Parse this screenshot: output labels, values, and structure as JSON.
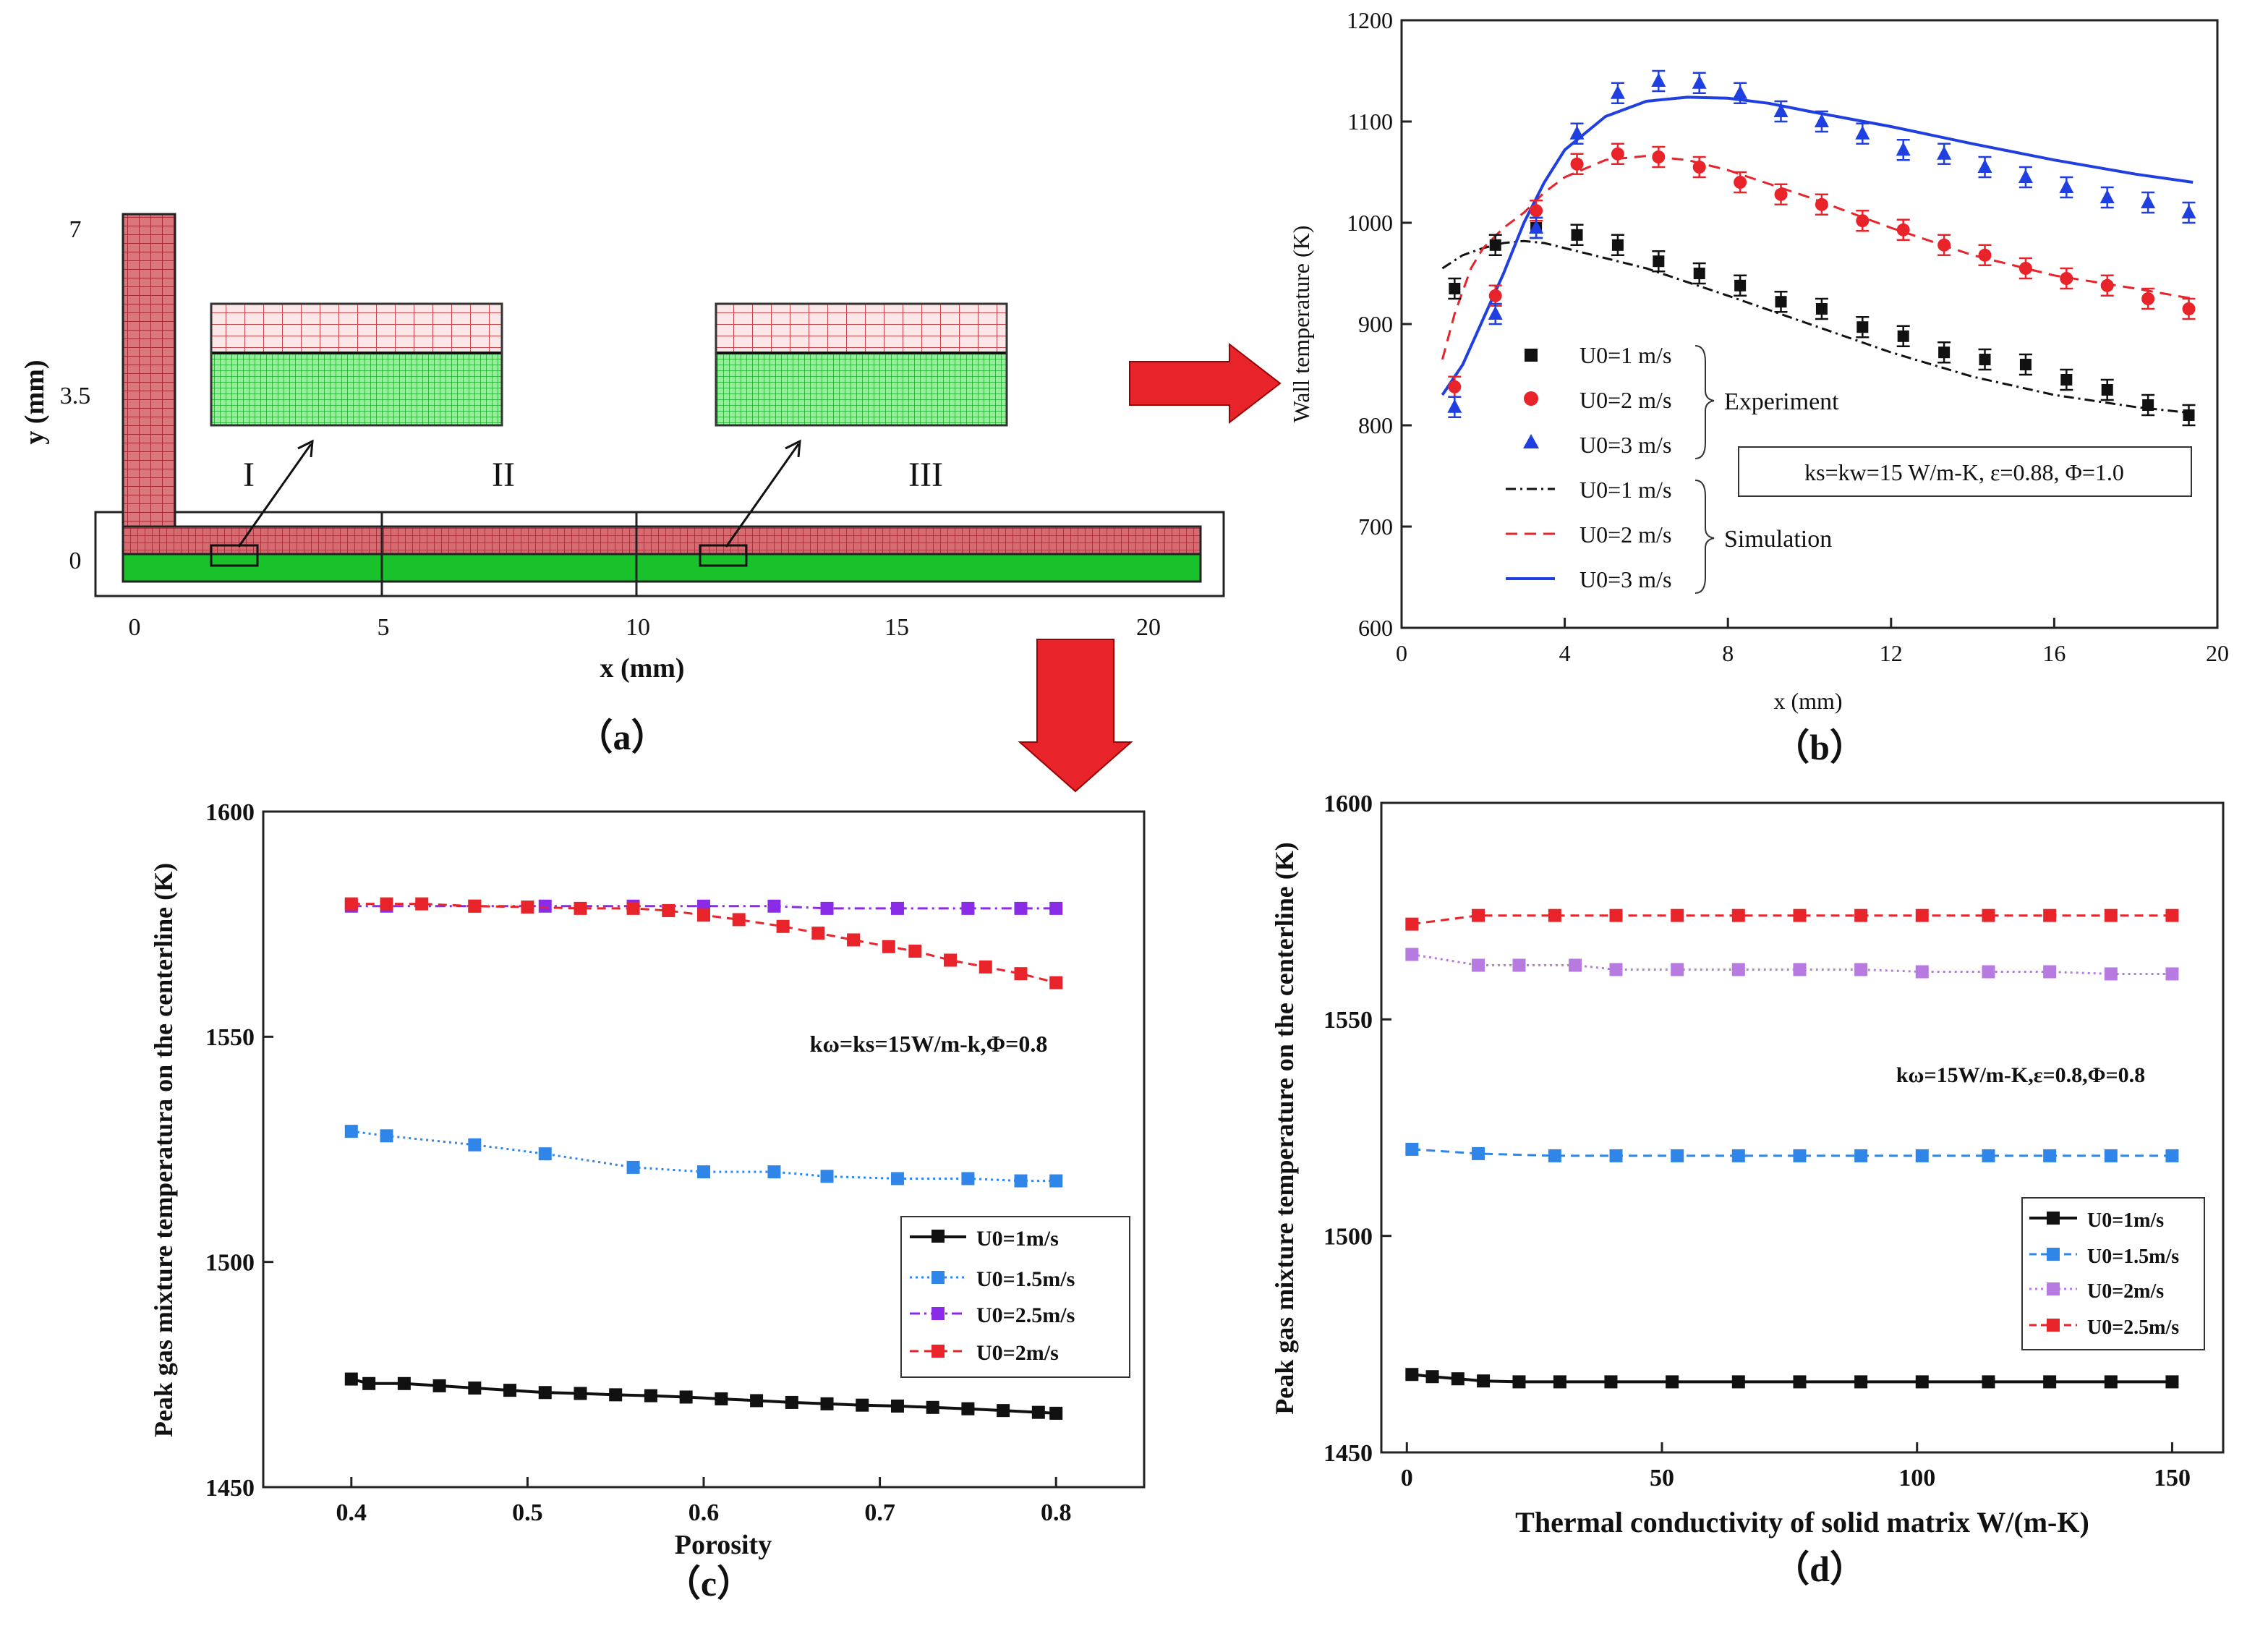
{
  "colors": {
    "red": "#e8242a",
    "blue": "#1f3fe0",
    "black": "#111111",
    "lightblue": "#2f86e8",
    "purple": "#8a2be8",
    "lilac": "#b77ae0",
    "mesh_red": "#c8464e",
    "mesh_green": "#19c22a"
  },
  "panel_a": {
    "label": "（a）",
    "xlabel": "x (mm)",
    "ylabel": "y (mm)",
    "xticks": [
      "0",
      "5",
      "10",
      "15",
      "20"
    ],
    "yticks": [
      "0",
      "3.5",
      "7"
    ],
    "regions": [
      "I",
      "II",
      "III"
    ]
  },
  "chart_data": [
    {
      "id": "b",
      "type": "line",
      "label": "（b）",
      "xlabel": "x (mm)",
      "ylabel": "Wall temperature (K)",
      "xlim": [
        0,
        20
      ],
      "ylim": [
        600,
        1200
      ],
      "xticks": [
        "0",
        "4",
        "8",
        "12",
        "16",
        "20"
      ],
      "yticks": [
        "600",
        "700",
        "800",
        "900",
        "1000",
        "1100",
        "1200"
      ],
      "legend": [
        "U0=1 m/s",
        "U0=2 m/s",
        "U0=3 m/s",
        "U0=1 m/s",
        "U0=2 m/s",
        "U0=3 m/s"
      ],
      "legend_group_experiment": "Experiment",
      "legend_group_simulation": "Simulation",
      "annotation": "ks=kw=15 W/m-K, ε=0.88, Φ=1.0",
      "experiment": [
        {
          "name": "U0=1 m/s",
          "marker": "square",
          "color": "#111111",
          "x": [
            1.3,
            2.3,
            3.3,
            4.3,
            5.3,
            6.3,
            7.3,
            8.3,
            9.3,
            10.3,
            11.3,
            12.3,
            13.3,
            14.3,
            15.3,
            16.3,
            17.3,
            18.3,
            19.3
          ],
          "y": [
            935,
            978,
            995,
            988,
            978,
            962,
            950,
            938,
            922,
            915,
            897,
            888,
            872,
            865,
            860,
            845,
            835,
            820,
            810
          ]
        },
        {
          "name": "U0=2 m/s",
          "marker": "circle",
          "color": "#e8242a",
          "x": [
            1.3,
            2.3,
            3.3,
            4.3,
            5.3,
            6.3,
            7.3,
            8.3,
            9.3,
            10.3,
            11.3,
            12.3,
            13.3,
            14.3,
            15.3,
            16.3,
            17.3,
            18.3,
            19.3
          ],
          "y": [
            838,
            928,
            1012,
            1058,
            1068,
            1065,
            1055,
            1040,
            1028,
            1018,
            1002,
            993,
            978,
            968,
            955,
            945,
            938,
            925,
            915
          ]
        },
        {
          "name": "U0=3 m/s",
          "marker": "triangle",
          "color": "#1f3fe0",
          "x": [
            1.3,
            2.3,
            3.3,
            4.3,
            5.3,
            6.3,
            7.3,
            8.3,
            9.3,
            10.3,
            11.3,
            12.3,
            13.3,
            14.3,
            15.3,
            16.3,
            17.3,
            18.3,
            19.3
          ],
          "y": [
            818,
            910,
            995,
            1088,
            1128,
            1140,
            1138,
            1128,
            1110,
            1100,
            1088,
            1072,
            1068,
            1055,
            1045,
            1035,
            1025,
            1020,
            1010
          ]
        }
      ],
      "simulation": [
        {
          "name": "U0=1 m/s",
          "dash": "dashdot",
          "color": "#111111",
          "x": [
            1,
            1.5,
            2,
            2.5,
            3,
            3.5,
            4,
            5,
            6,
            8,
            10,
            12,
            14,
            16,
            18,
            19.4
          ],
          "y": [
            955,
            968,
            975,
            980,
            982,
            980,
            975,
            965,
            955,
            928,
            900,
            872,
            848,
            830,
            818,
            812
          ]
        },
        {
          "name": "U0=2 m/s",
          "dash": "dash",
          "color": "#e8242a",
          "x": [
            1,
            1.3,
            1.7,
            2,
            2.5,
            3,
            3.5,
            4,
            5,
            6,
            7,
            8,
            10,
            12,
            14,
            16,
            18,
            19.4
          ],
          "y": [
            865,
            910,
            955,
            975,
            995,
            1010,
            1030,
            1045,
            1062,
            1066,
            1062,
            1052,
            1025,
            995,
            968,
            948,
            935,
            925
          ]
        },
        {
          "name": "U0=3 m/s",
          "dash": "solid",
          "color": "#1f3fe0",
          "x": [
            1,
            1.5,
            2,
            2.5,
            3,
            3.5,
            4,
            5,
            6,
            7,
            8,
            9,
            10,
            12,
            14,
            16,
            18,
            19.4
          ],
          "y": [
            830,
            860,
            905,
            950,
            1000,
            1040,
            1072,
            1105,
            1120,
            1124,
            1123,
            1118,
            1110,
            1095,
            1078,
            1062,
            1048,
            1040
          ]
        }
      ]
    },
    {
      "id": "c",
      "type": "line",
      "label": "（c）",
      "xlabel": "Porosity",
      "ylabel": "Peak gas mixture temperatura on the centerline (K)",
      "xlim": [
        0.35,
        0.85
      ],
      "ylim": [
        1450,
        1600
      ],
      "xticks": [
        "0.4",
        "0.5",
        "0.6",
        "0.7",
        "0.8"
      ],
      "yticks": [
        "1450",
        "1500",
        "1550",
        "1600"
      ],
      "annotation": "kω=ks=15W/m-k,Φ=0.8",
      "legend": [
        "U0=1m/s",
        "U0=1.5m/s",
        "U0=2.5m/s",
        "U0=2m/s"
      ],
      "series": [
        {
          "name": "U0=1m/s",
          "color": "#111111",
          "dash": "solid",
          "x": [
            0.4,
            0.41,
            0.43,
            0.45,
            0.47,
            0.49,
            0.51,
            0.53,
            0.55,
            0.57,
            0.59,
            0.61,
            0.63,
            0.65,
            0.67,
            0.69,
            0.71,
            0.73,
            0.75,
            0.77,
            0.79,
            0.8
          ],
          "y": [
            1474,
            1473,
            1473,
            1472.5,
            1472,
            1471.5,
            1471,
            1470.8,
            1470.5,
            1470.3,
            1470,
            1469.6,
            1469.2,
            1468.8,
            1468.5,
            1468.2,
            1468,
            1467.7,
            1467.4,
            1467,
            1466.6,
            1466.4
          ]
        },
        {
          "name": "U0=1.5m/s",
          "color": "#2f86e8",
          "dash": "dot",
          "x": [
            0.4,
            0.42,
            0.47,
            0.51,
            0.56,
            0.6,
            0.64,
            0.67,
            0.71,
            0.75,
            0.78,
            0.8
          ],
          "y": [
            1529,
            1528,
            1526,
            1524,
            1521,
            1520,
            1520,
            1519,
            1518.5,
            1518.5,
            1518,
            1518
          ]
        },
        {
          "name": "U0=2.5m/s",
          "color": "#8a2be8",
          "dash": "dashdot",
          "x": [
            0.4,
            0.42,
            0.47,
            0.51,
            0.56,
            0.6,
            0.64,
            0.67,
            0.71,
            0.75,
            0.78,
            0.8
          ],
          "y": [
            1579,
            1579,
            1579,
            1579,
            1579,
            1579,
            1579,
            1578.5,
            1578.5,
            1578.5,
            1578.5,
            1578.5
          ]
        },
        {
          "name": "U0=2m/s",
          "color": "#e8242a",
          "dash": "dash",
          "x": [
            0.4,
            0.42,
            0.44,
            0.47,
            0.5,
            0.53,
            0.56,
            0.58,
            0.6,
            0.62,
            0.645,
            0.665,
            0.685,
            0.705,
            0.72,
            0.74,
            0.76,
            0.78,
            0.8
          ],
          "y": [
            1579.5,
            1579.5,
            1579.5,
            1579,
            1578.8,
            1578.5,
            1578.5,
            1578,
            1577,
            1576,
            1574.5,
            1573,
            1571.5,
            1570,
            1569,
            1567,
            1565.5,
            1564,
            1562
          ]
        }
      ]
    },
    {
      "id": "d",
      "type": "line",
      "label": "（d）",
      "xlabel": "Thermal conductivity of solid matrix W/(m-K)",
      "ylabel": "Peak gas mixture temperature on the centerline (K)",
      "xlim": [
        -5,
        160
      ],
      "ylim": [
        1450,
        1600
      ],
      "xticks": [
        "0",
        "50",
        "100",
        "150"
      ],
      "yticks": [
        "1450",
        "1500",
        "1550",
        "1600"
      ],
      "annotation": "kω=15W/m-K,ε=0.8,Φ=0.8",
      "legend": [
        "U0=1m/s",
        "U0=1.5m/s",
        "U0=2m/s",
        "U0=2.5m/s"
      ],
      "series": [
        {
          "name": "U0=1m/s",
          "color": "#111111",
          "dash": "solid",
          "x": [
            1,
            5,
            10,
            15,
            22,
            30,
            40,
            52,
            65,
            77,
            89,
            101,
            114,
            126,
            138,
            150
          ],
          "y": [
            1468,
            1467.5,
            1467,
            1466.5,
            1466.3,
            1466.3,
            1466.3,
            1466.3,
            1466.3,
            1466.3,
            1466.3,
            1466.3,
            1466.3,
            1466.3,
            1466.3,
            1466.3
          ]
        },
        {
          "name": "U0=1.5m/s",
          "color": "#2f86e8",
          "dash": "dash",
          "x": [
            1,
            14,
            29,
            41,
            53,
            65,
            77,
            89,
            101,
            114,
            126,
            138,
            150
          ],
          "y": [
            1520,
            1519,
            1518.5,
            1518.5,
            1518.5,
            1518.5,
            1518.5,
            1518.5,
            1518.5,
            1518.5,
            1518.5,
            1518.5,
            1518.5
          ]
        },
        {
          "name": "U0=2m/s",
          "color": "#b77ae0",
          "dash": "dot",
          "x": [
            1,
            14,
            22,
            33,
            41,
            53,
            65,
            77,
            89,
            101,
            114,
            126,
            138,
            150
          ],
          "y": [
            1565,
            1562.5,
            1562.5,
            1562.5,
            1561.5,
            1561.5,
            1561.5,
            1561.5,
            1561.5,
            1561,
            1561,
            1561,
            1560.5,
            1560.5
          ]
        },
        {
          "name": "U0=2.5m/s",
          "color": "#e8242a",
          "dash": "dash",
          "x": [
            1,
            14,
            29,
            41,
            53,
            65,
            77,
            89,
            101,
            114,
            126,
            138,
            150
          ],
          "y": [
            1572,
            1574,
            1574,
            1574,
            1574,
            1574,
            1574,
            1574,
            1574,
            1574,
            1574,
            1574,
            1574
          ]
        }
      ]
    }
  ]
}
